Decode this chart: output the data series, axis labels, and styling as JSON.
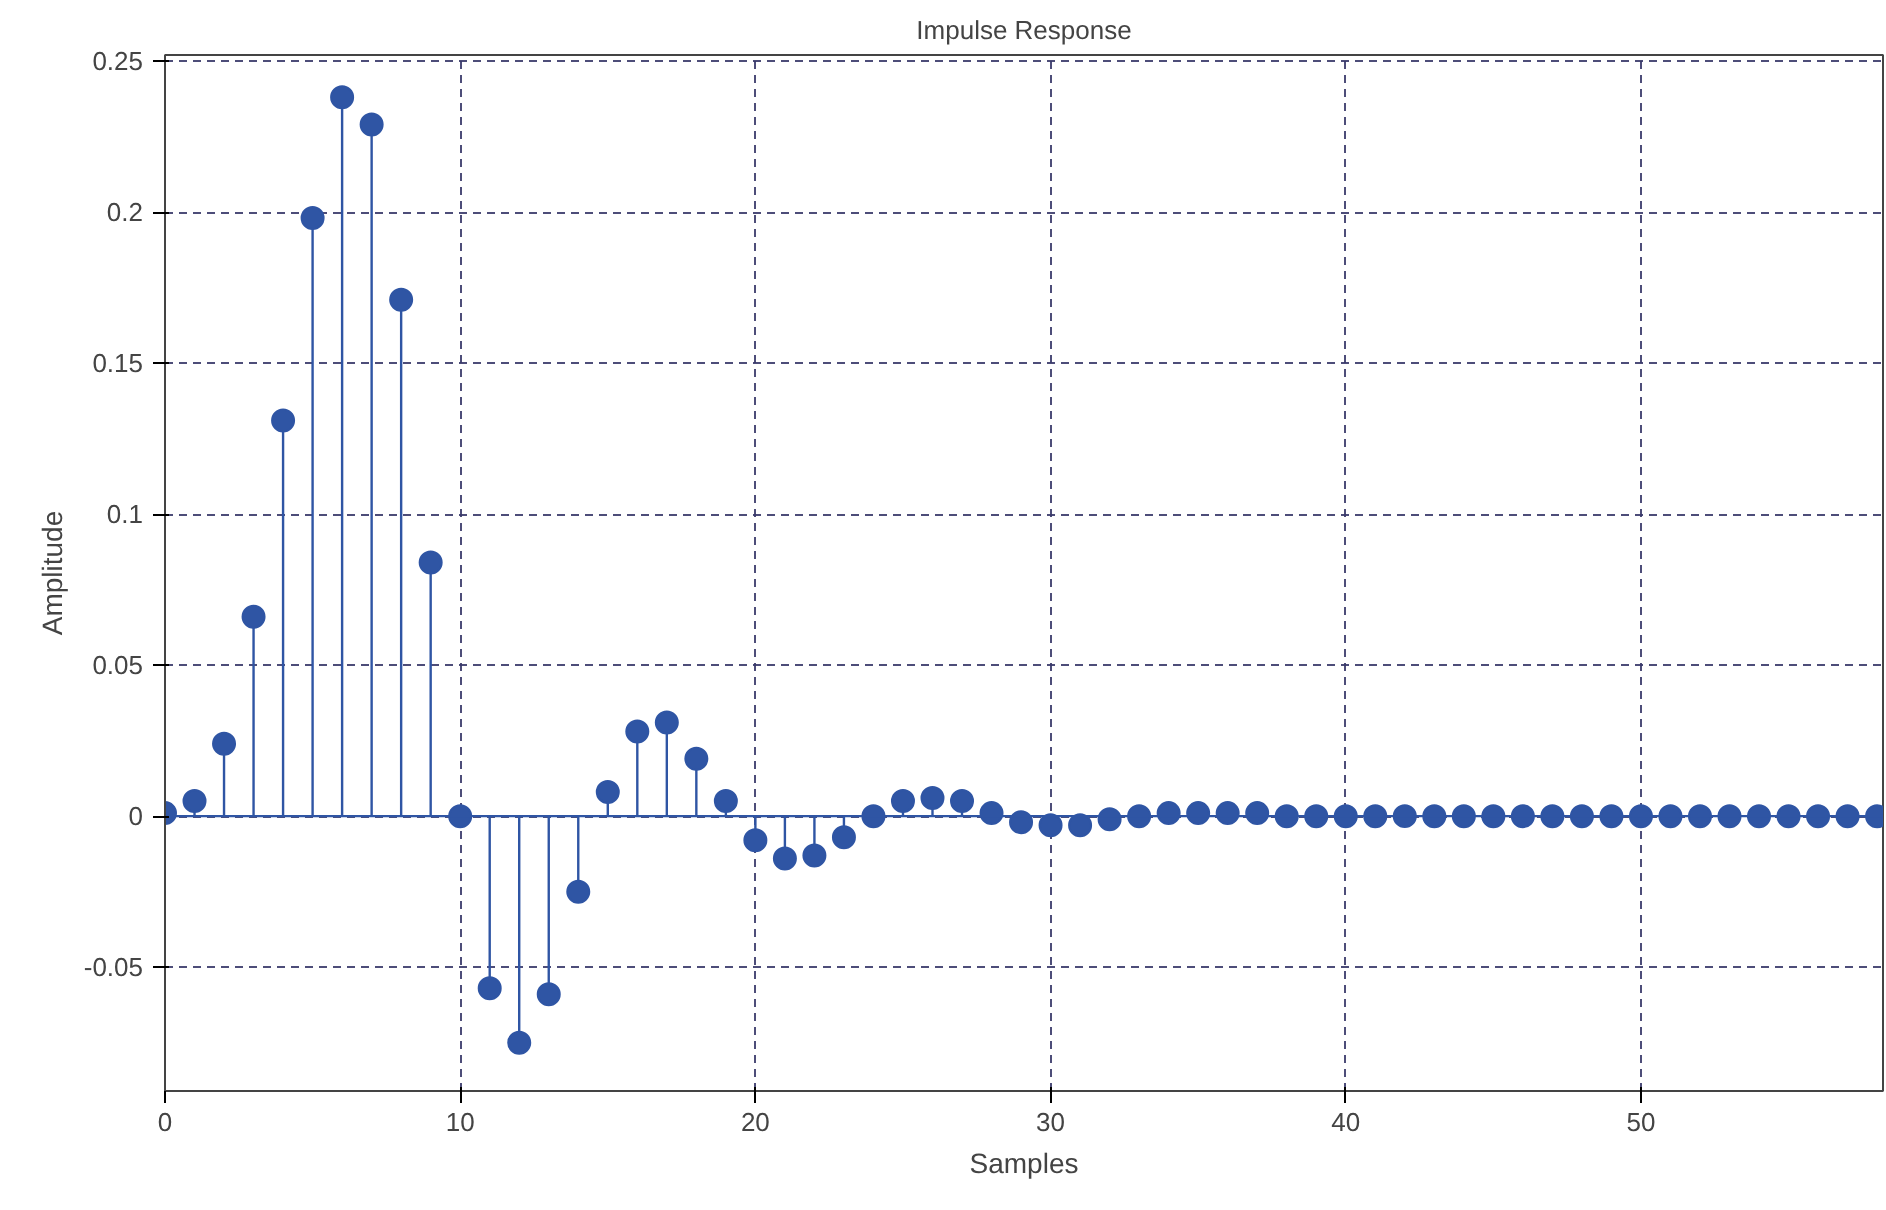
{
  "chart_data": {
    "type": "lollipop",
    "title": "Impulse Response",
    "xlabel": "Samples",
    "ylabel": "Amplitude",
    "x": [
      0,
      1,
      2,
      3,
      4,
      5,
      6,
      7,
      8,
      9,
      10,
      11,
      12,
      13,
      14,
      15,
      16,
      17,
      18,
      19,
      20,
      21,
      22,
      23,
      24,
      25,
      26,
      27,
      28,
      29,
      30,
      31,
      32,
      33,
      34,
      35,
      36,
      37,
      38,
      39,
      40,
      41,
      42,
      43,
      44,
      45,
      46,
      47,
      48,
      49,
      50,
      51,
      52,
      53,
      54,
      55,
      56,
      57,
      58
    ],
    "values": [
      0.001,
      0.005,
      0.024,
      0.066,
      0.131,
      0.198,
      0.238,
      0.229,
      0.171,
      0.084,
      0.0,
      -0.057,
      -0.075,
      -0.059,
      -0.025,
      0.008,
      0.028,
      0.031,
      0.019,
      0.005,
      -0.008,
      -0.014,
      -0.013,
      -0.007,
      0.0,
      0.005,
      0.006,
      0.005,
      0.001,
      -0.002,
      -0.003,
      -0.003,
      -0.001,
      0.0,
      0.001,
      0.001,
      0.001,
      0.001,
      0.0,
      0.0,
      0.0,
      0.0,
      0.0,
      0.0,
      0.0,
      0.0,
      0.0,
      0.0,
      0.0,
      0.0,
      0.0,
      0.0,
      0.0,
      0.0,
      0.0,
      0.0,
      0.0,
      0.0,
      0.0
    ],
    "color": "#2f55a4",
    "ref_lines": [
      {
        "axis": "y",
        "value": 0,
        "color": "#2f55a4"
      }
    ],
    "marker": "circle",
    "grid": true,
    "xlim": [
      0,
      58.2
    ],
    "ylim": [
      -0.091,
      0.252
    ],
    "xticks": [
      0,
      10,
      20,
      30,
      40,
      50
    ],
    "yticks": [
      -0.05,
      0,
      0.05,
      0.1,
      0.15,
      0.2,
      0.25
    ]
  }
}
